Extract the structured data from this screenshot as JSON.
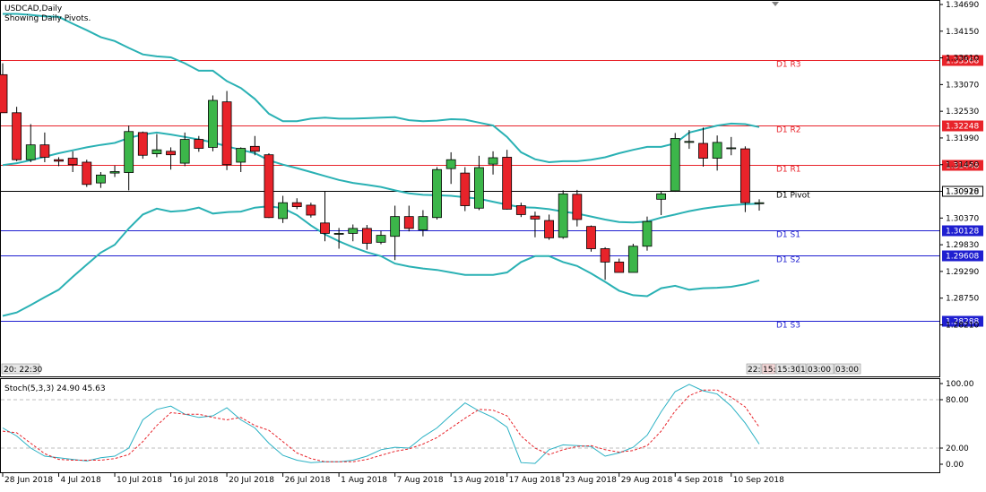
{
  "header": {
    "symbol_title": "USDCAD,Daily",
    "subtitle": "Showing Daily Pivots."
  },
  "indicator_title": "Stoch(5,3,3) 24.90 45.63",
  "time_labels": {
    "left": "20: 22:30",
    "right": [
      "22:",
      "15:",
      "15:30",
      "1",
      "03:00",
      "03:00"
    ]
  },
  "colors": {
    "up_candle": "#3cb64a",
    "down_candle": "#e8232a",
    "bollinger": "#2ab1b4",
    "resistance_line": "#e8232a",
    "support_line": "#1f1fd0",
    "pivot_line": "#000000",
    "stoch_main": "#2ab1c4",
    "stoch_signal": "#e8232a",
    "price_tag_red": "#e8232a",
    "price_tag_blue": "#1f1fd0"
  },
  "chart_data": [
    {
      "type": "candlestick",
      "title": "USDCAD,Daily",
      "ylim": [
        1.2762,
        1.3469
      ],
      "price_axis_ticks": [
        "1.34690",
        "1.34150",
        "1.33610",
        "1.33070",
        "1.32530",
        "1.31990",
        "1.31450",
        "1.30910",
        "1.30370",
        "1.29830",
        "1.29290",
        "1.28750",
        "1.28210"
      ],
      "date_labels": [
        "28 Jun 2018",
        "4 Jul 2018",
        "10 Jul 2018",
        "16 Jul 2018",
        "20 Jul 2018",
        "26 Jul 2018",
        "1 Aug 2018",
        "7 Aug 2018",
        "13 Aug 2018",
        "17 Aug 2018",
        "23 Aug 2018",
        "29 Aug 2018",
        "4 Sep 2018",
        "10 Sep 2018"
      ],
      "date_label_index": [
        0,
        4,
        8,
        12,
        16,
        20,
        24,
        28,
        32,
        36,
        40,
        44,
        48,
        52
      ],
      "candles": [
        {
          "o": 1.3327,
          "h": 1.335,
          "l": 1.325,
          "c": 1.325
        },
        {
          "o": 1.325,
          "h": 1.3262,
          "l": 1.3152,
          "c": 1.3155
        },
        {
          "o": 1.3155,
          "h": 1.3227,
          "l": 1.315,
          "c": 1.3185
        },
        {
          "o": 1.3185,
          "h": 1.321,
          "l": 1.315,
          "c": 1.316
        },
        {
          "o": 1.3155,
          "h": 1.316,
          "l": 1.3142,
          "c": 1.3152
        },
        {
          "o": 1.3158,
          "h": 1.3172,
          "l": 1.313,
          "c": 1.3145
        },
        {
          "o": 1.315,
          "h": 1.3155,
          "l": 1.31,
          "c": 1.3105
        },
        {
          "o": 1.3108,
          "h": 1.313,
          "l": 1.3098,
          "c": 1.3124
        },
        {
          "o": 1.3128,
          "h": 1.3143,
          "l": 1.312,
          "c": 1.3131
        },
        {
          "o": 1.3129,
          "h": 1.3224,
          "l": 1.3093,
          "c": 1.3212
        },
        {
          "o": 1.321,
          "h": 1.3212,
          "l": 1.3157,
          "c": 1.3164
        },
        {
          "o": 1.3167,
          "h": 1.3207,
          "l": 1.316,
          "c": 1.3175
        },
        {
          "o": 1.3172,
          "h": 1.318,
          "l": 1.3135,
          "c": 1.3165
        },
        {
          "o": 1.3148,
          "h": 1.321,
          "l": 1.3142,
          "c": 1.3196
        },
        {
          "o": 1.3196,
          "h": 1.3203,
          "l": 1.3171,
          "c": 1.3178
        },
        {
          "o": 1.318,
          "h": 1.3285,
          "l": 1.3172,
          "c": 1.3275
        },
        {
          "o": 1.3272,
          "h": 1.3294,
          "l": 1.3134,
          "c": 1.3145
        },
        {
          "o": 1.315,
          "h": 1.318,
          "l": 1.313,
          "c": 1.3178
        },
        {
          "o": 1.3182,
          "h": 1.3203,
          "l": 1.3164,
          "c": 1.3172
        },
        {
          "o": 1.3165,
          "h": 1.3168,
          "l": 1.3037,
          "c": 1.3038
        },
        {
          "o": 1.3036,
          "h": 1.3082,
          "l": 1.3027,
          "c": 1.3068
        },
        {
          "o": 1.3068,
          "h": 1.3077,
          "l": 1.3055,
          "c": 1.306
        },
        {
          "o": 1.3063,
          "h": 1.3068,
          "l": 1.3038,
          "c": 1.3043
        },
        {
          "o": 1.3027,
          "h": 1.3091,
          "l": 1.299,
          "c": 1.3006
        },
        {
          "o": 1.3006,
          "h": 1.3017,
          "l": 1.2975,
          "c": 1.3006
        },
        {
          "o": 1.3006,
          "h": 1.3024,
          "l": 1.299,
          "c": 1.3016
        },
        {
          "o": 1.3016,
          "h": 1.3023,
          "l": 1.2973,
          "c": 1.2986
        },
        {
          "o": 1.2988,
          "h": 1.3011,
          "l": 1.2984,
          "c": 1.3002
        },
        {
          "o": 1.3,
          "h": 1.3062,
          "l": 1.2952,
          "c": 1.304
        },
        {
          "o": 1.304,
          "h": 1.3062,
          "l": 1.301,
          "c": 1.3016
        },
        {
          "o": 1.3013,
          "h": 1.3053,
          "l": 1.3,
          "c": 1.304
        },
        {
          "o": 1.3038,
          "h": 1.314,
          "l": 1.3034,
          "c": 1.3135
        },
        {
          "o": 1.3137,
          "h": 1.317,
          "l": 1.3106,
          "c": 1.3155
        },
        {
          "o": 1.3128,
          "h": 1.314,
          "l": 1.3051,
          "c": 1.3062
        },
        {
          "o": 1.3057,
          "h": 1.3163,
          "l": 1.3053,
          "c": 1.3139
        },
        {
          "o": 1.3146,
          "h": 1.3172,
          "l": 1.3125,
          "c": 1.3159
        },
        {
          "o": 1.316,
          "h": 1.3175,
          "l": 1.3054,
          "c": 1.3055
        },
        {
          "o": 1.3062,
          "h": 1.3068,
          "l": 1.3039,
          "c": 1.3044
        },
        {
          "o": 1.3041,
          "h": 1.305,
          "l": 1.2998,
          "c": 1.3035
        },
        {
          "o": 1.3032,
          "h": 1.3044,
          "l": 1.2993,
          "c": 1.2997
        },
        {
          "o": 1.2998,
          "h": 1.3093,
          "l": 1.2995,
          "c": 1.3086
        },
        {
          "o": 1.3085,
          "h": 1.3094,
          "l": 1.302,
          "c": 1.3034
        },
        {
          "o": 1.302,
          "h": 1.3022,
          "l": 1.2969,
          "c": 1.2975
        },
        {
          "o": 1.2975,
          "h": 1.2978,
          "l": 1.2912,
          "c": 1.2948
        },
        {
          "o": 1.2948,
          "h": 1.2955,
          "l": 1.2927,
          "c": 1.2927
        },
        {
          "o": 1.2927,
          "h": 1.2985,
          "l": 1.2927,
          "c": 1.298
        },
        {
          "o": 1.298,
          "h": 1.304,
          "l": 1.2971,
          "c": 1.303
        },
        {
          "o": 1.3075,
          "h": 1.3091,
          "l": 1.3043,
          "c": 1.3086
        },
        {
          "o": 1.3092,
          "h": 1.3209,
          "l": 1.309,
          "c": 1.3198
        },
        {
          "o": 1.319,
          "h": 1.3215,
          "l": 1.3177,
          "c": 1.3192
        },
        {
          "o": 1.3188,
          "h": 1.322,
          "l": 1.3141,
          "c": 1.3158
        },
        {
          "o": 1.3158,
          "h": 1.3204,
          "l": 1.3133,
          "c": 1.319
        },
        {
          "o": 1.3179,
          "h": 1.3201,
          "l": 1.3164,
          "c": 1.3179
        },
        {
          "o": 1.3177,
          "h": 1.3182,
          "l": 1.3049,
          "c": 1.3068
        },
        {
          "o": 1.3066,
          "h": 1.3075,
          "l": 1.3052,
          "c": 1.3068
        }
      ],
      "bollinger_bands": {
        "upper": [
          1.345,
          1.345,
          1.3448,
          1.3445,
          1.3444,
          1.343,
          1.3417,
          1.3403,
          1.3395,
          1.3381,
          1.3368,
          1.3364,
          1.3362,
          1.335,
          1.3335,
          1.3335,
          1.3314,
          1.33,
          1.3278,
          1.3248,
          1.3233,
          1.3233,
          1.3238,
          1.324,
          1.3238,
          1.3238,
          1.3239,
          1.324,
          1.3241,
          1.3235,
          1.3233,
          1.3234,
          1.3237,
          1.3236,
          1.323,
          1.3224,
          1.3201,
          1.317,
          1.3156,
          1.315,
          1.3152,
          1.3152,
          1.3155,
          1.316,
          1.3168,
          1.3175,
          1.3181,
          1.3181,
          1.3188,
          1.321,
          1.3217,
          1.3224,
          1.3228,
          1.3227,
          1.3221
        ],
        "middle": [
          1.3144,
          1.3148,
          1.3154,
          1.3161,
          1.3168,
          1.3174,
          1.318,
          1.3185,
          1.3189,
          1.3199,
          1.3206,
          1.321,
          1.3206,
          1.3201,
          1.3196,
          1.319,
          1.3182,
          1.3175,
          1.3168,
          1.3154,
          1.3145,
          1.3138,
          1.313,
          1.3122,
          1.3114,
          1.3108,
          1.3104,
          1.31,
          1.3093,
          1.3087,
          1.3084,
          1.3083,
          1.3082,
          1.3079,
          1.3076,
          1.307,
          1.3064,
          1.3059,
          1.3058,
          1.3055,
          1.305,
          1.3046,
          1.304,
          1.3034,
          1.3029,
          1.3028,
          1.303,
          1.3038,
          1.3044,
          1.3051,
          1.3056,
          1.306,
          1.3063,
          1.3065,
          1.3066
        ],
        "lower": [
          1.2839,
          1.2846,
          1.2861,
          1.2877,
          1.2892,
          1.2918,
          1.2943,
          1.2967,
          1.2983,
          1.3016,
          1.3044,
          1.3056,
          1.305,
          1.3052,
          1.3058,
          1.3046,
          1.3049,
          1.305,
          1.3058,
          1.3061,
          1.3057,
          1.3043,
          1.3022,
          1.3004,
          1.299,
          1.2978,
          1.2968,
          1.296,
          1.2945,
          1.2939,
          1.2935,
          1.2932,
          1.2927,
          1.2922,
          1.2922,
          1.2922,
          1.2927,
          1.2948,
          1.296,
          1.296,
          1.2948,
          1.294,
          1.2925,
          1.2908,
          1.289,
          1.2881,
          1.2879,
          1.2895,
          1.29,
          1.2892,
          1.2895,
          1.2896,
          1.2898,
          1.2903,
          1.2911
        ]
      },
      "pivots": [
        {
          "label": "D1 R3",
          "value": 1.33568,
          "tag": "1.33568",
          "kind": "resistance"
        },
        {
          "label": "D1 R2",
          "value": 1.32248,
          "tag": "1.32248",
          "kind": "resistance"
        },
        {
          "label": "D1 R1",
          "value": 1.31448,
          "tag": "1.31448",
          "kind": "resistance"
        },
        {
          "label": "D1 Pivot",
          "value": 1.30928,
          "tag": "1.30928",
          "kind": "pivot"
        },
        {
          "label": "D1 S1",
          "value": 1.30128,
          "tag": "1.30128",
          "kind": "support"
        },
        {
          "label": "D1 S2",
          "value": 1.29608,
          "tag": "1.29608",
          "kind": "support"
        },
        {
          "label": "D1 S3",
          "value": 1.28288,
          "tag": "1.28288",
          "kind": "support"
        }
      ]
    },
    {
      "type": "line",
      "title": "Stoch(5,3,3) 24.90 45.63",
      "ylim": [
        0,
        100
      ],
      "axis_ticks": [
        "100.00",
        "80.00",
        "20.00",
        "0.00"
      ],
      "levels": [
        80,
        20
      ],
      "series": [
        {
          "name": "Stoch main",
          "values": [
            45,
            35,
            20,
            10,
            8,
            6,
            4,
            8,
            10,
            20,
            55,
            68,
            72,
            62,
            58,
            60,
            70,
            55,
            45,
            26,
            11,
            5,
            2,
            3,
            3,
            5,
            10,
            18,
            21,
            20,
            34,
            45,
            61,
            76,
            66,
            58,
            46,
            2,
            1,
            18,
            24,
            23,
            22,
            10,
            14,
            21,
            36,
            65,
            90,
            99,
            91,
            87,
            72,
            51,
            25
          ]
        },
        {
          "name": "Stoch signal",
          "values": [
            41,
            39,
            26,
            13,
            6,
            5,
            5,
            5,
            7,
            12,
            28,
            48,
            64,
            62,
            62,
            58,
            55,
            58,
            48,
            42,
            28,
            14,
            7,
            3,
            3,
            3,
            6,
            11,
            16,
            19,
            25,
            33,
            45,
            57,
            68,
            67,
            60,
            35,
            20,
            12,
            18,
            22,
            23,
            18,
            15,
            17,
            23,
            41,
            66,
            85,
            92,
            92,
            83,
            71,
            46
          ]
        }
      ]
    }
  ]
}
